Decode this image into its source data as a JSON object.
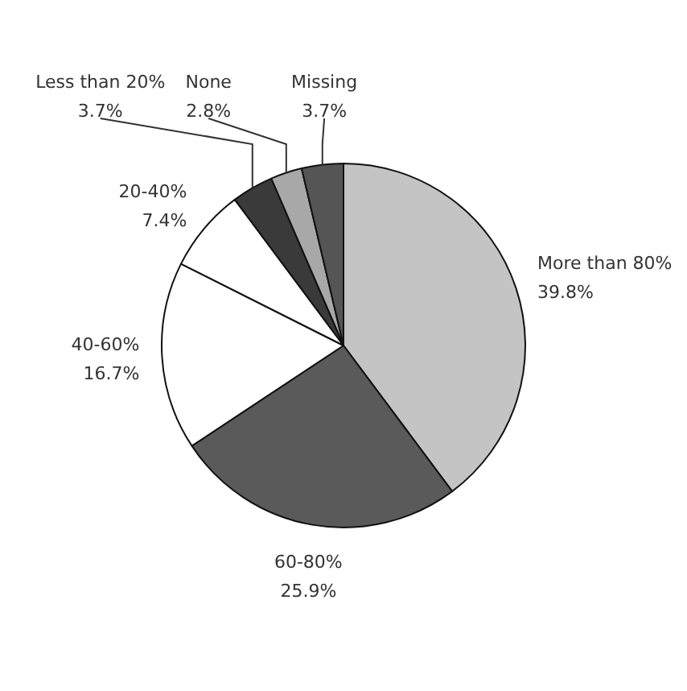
{
  "chart_data": {
    "type": "pie",
    "categories": [
      "More than 80%",
      "60-80%",
      "40-60%",
      "20-40%",
      "Less than 20%",
      "None",
      "Missing"
    ],
    "values": [
      39.8,
      25.9,
      16.7,
      7.4,
      3.7,
      2.8,
      3.7
    ],
    "value_labels": [
      "39.8%",
      "25.9%",
      "16.7%",
      "7.4%",
      "3.7%",
      "2.8%",
      "3.7%"
    ],
    "colors": [
      "#c4c4c4",
      "#5a5a5a",
      "#ffffff",
      "#ffffff",
      "#3a3a3a",
      "#a8a8a8",
      "#555555"
    ],
    "legend": false
  }
}
